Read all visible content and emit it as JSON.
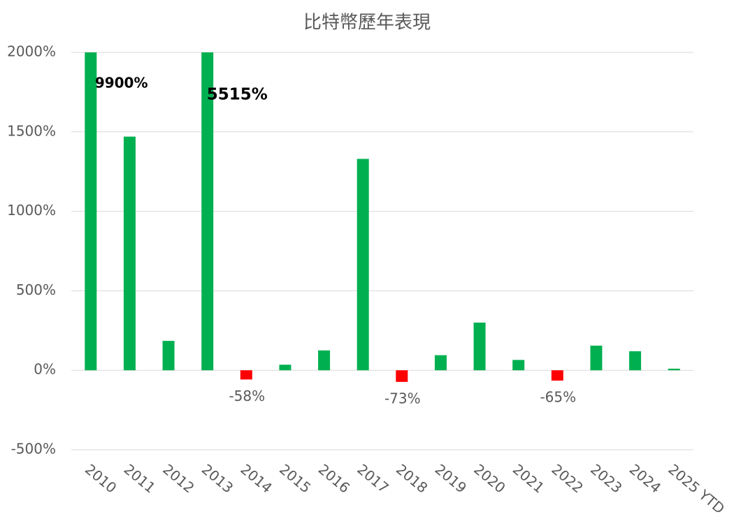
{
  "chart_data": {
    "type": "bar",
    "title": "比特幣歷年表現",
    "categories": [
      "2010",
      "2011",
      "2012",
      "2013",
      "2014",
      "2015",
      "2016",
      "2017",
      "2018",
      "2019",
      "2020",
      "2021",
      "2022",
      "2023",
      "2024",
      "2025 YTD"
    ],
    "values": [
      9900,
      1470,
      185,
      5515,
      -58,
      35,
      125,
      1330,
      -73,
      95,
      300,
      65,
      -65,
      155,
      120,
      10
    ],
    "value_labels": [
      "9900%",
      null,
      null,
      "5515%",
      "-58%",
      null,
      null,
      null,
      "-73%",
      null,
      null,
      null,
      "-65%",
      null,
      null,
      null
    ],
    "color": "#00b050",
    "negative_color": "#ff0000",
    "ylim": [
      -500,
      2000
    ],
    "yticks": [
      {
        "value": -500,
        "label": "-500%"
      },
      {
        "value": 0,
        "label": "0%"
      },
      {
        "value": 500,
        "label": "500%"
      },
      {
        "value": 1000,
        "label": "1000%"
      },
      {
        "value": 1500,
        "label": "1500%"
      },
      {
        "value": 2000,
        "label": "2000%"
      }
    ],
    "grid": true
  }
}
